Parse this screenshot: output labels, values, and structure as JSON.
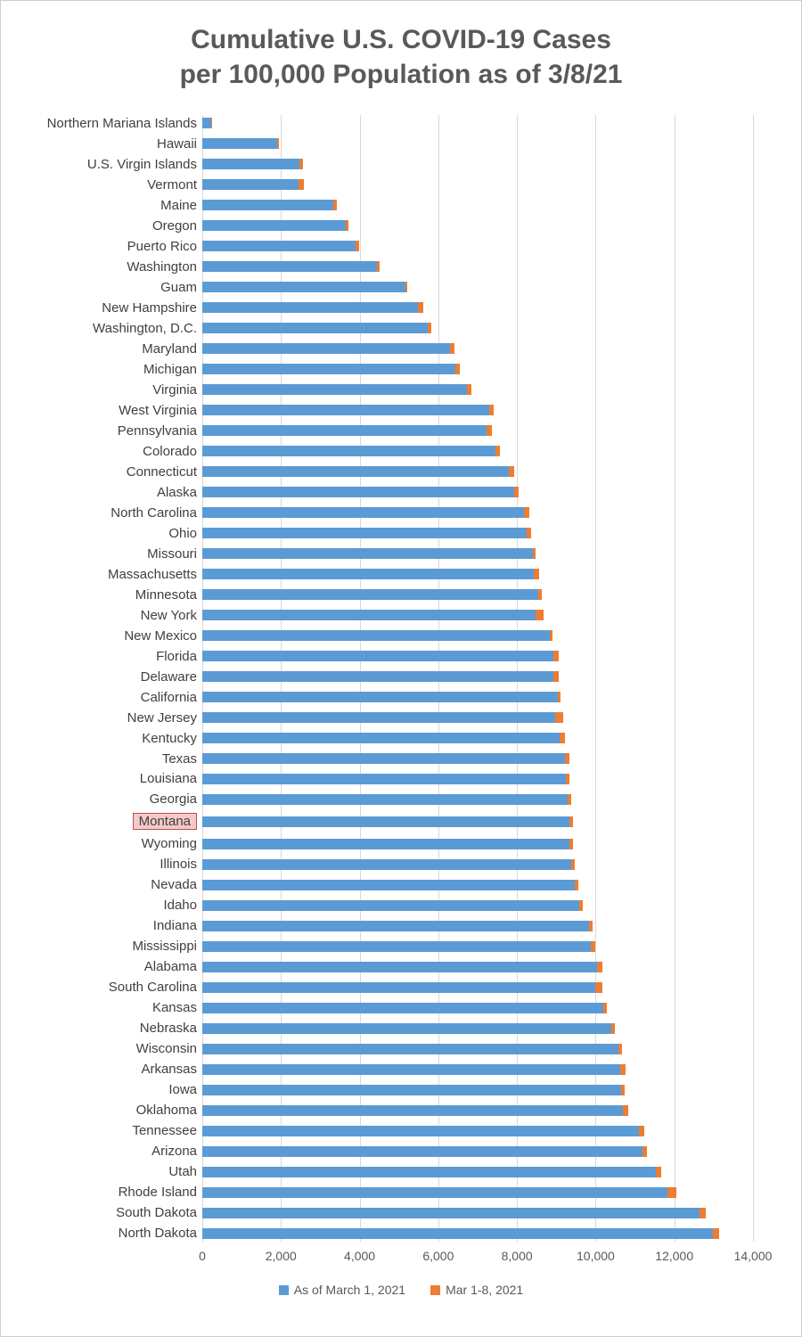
{
  "title": {
    "line1": "Cumulative U.S. COVID-19 Cases",
    "line2": "per 100,000 Population as of 3/8/21"
  },
  "legend": [
    {
      "label": "As of March 1, 2021",
      "color": "#5B9BD5"
    },
    {
      "label": "Mar 1-8, 2021",
      "color": "#ED7D31"
    }
  ],
  "colors": {
    "title_text": "#595959",
    "axis_text": "#595959",
    "gridline": "#d9d9d9",
    "highlight_fill": "#f5c8c9",
    "highlight_border": "#b85450",
    "frame_border": "#cfcfcf"
  },
  "chart_data": {
    "type": "bar",
    "orientation": "horizontal",
    "stacked": true,
    "title": "Cumulative U.S. COVID-19 Cases per 100,000 Population as of 3/8/21",
    "xlabel": "",
    "ylabel": "",
    "xlim": [
      0,
      14000
    ],
    "grid": true,
    "legend_position": "bottom",
    "highlighted_category": "Montana",
    "xticks": [
      {
        "label": "0",
        "value": 0
      },
      {
        "label": "2,000",
        "value": 2000
      },
      {
        "label": "4,000",
        "value": 4000
      },
      {
        "label": "6,000",
        "value": 6000
      },
      {
        "label": "8,000",
        "value": 8000
      },
      {
        "label": "10,000",
        "value": 10000
      },
      {
        "label": "12,000",
        "value": 12000
      },
      {
        "label": "14,000",
        "value": 14000
      }
    ],
    "categories": [
      "Northern Mariana Islands",
      "Hawaii",
      "U.S. Virgin Islands",
      "Vermont",
      "Maine",
      "Oregon",
      "Puerto Rico",
      "Washington",
      "Guam",
      "New Hampshire",
      "Washington, D.C.",
      "Maryland",
      "Michigan",
      "Virginia",
      "West Virginia",
      "Pennsylvania",
      "Colorado",
      "Connecticut",
      "Alaska",
      "North Carolina",
      "Ohio",
      "Missouri",
      "Massachusetts",
      "Minnesota",
      "New York",
      "New Mexico",
      "Florida",
      "Delaware",
      "California",
      "New Jersey",
      "Kentucky",
      "Texas",
      "Louisiana",
      "Georgia",
      "Montana",
      "Wyoming",
      "Illinois",
      "Nevada",
      "Idaho",
      "Indiana",
      "Mississippi",
      "Alabama",
      "South Carolina",
      "Kansas",
      "Nebraska",
      "Wisconsin",
      "Arkansas",
      "Iowa",
      "Oklahoma",
      "Tennessee",
      "Arizona",
      "Utah",
      "Rhode Island",
      "South Dakota",
      "North Dakota"
    ],
    "series": [
      {
        "name": "As of March 1, 2021",
        "color": "#5B9BD5",
        "values": [
          230,
          1900,
          2480,
          2440,
          3320,
          3650,
          3900,
          4430,
          5170,
          5480,
          5730,
          6290,
          6430,
          6720,
          7290,
          7230,
          7450,
          7790,
          7940,
          8180,
          8250,
          8400,
          8430,
          8540,
          8480,
          8840,
          8930,
          8920,
          9030,
          8980,
          9090,
          9230,
          9240,
          9280,
          9330,
          9340,
          9380,
          9480,
          9580,
          9830,
          9880,
          10040,
          9990,
          10190,
          10390,
          10580,
          10630,
          10640,
          10690,
          11090,
          11190,
          11540,
          11830,
          12640,
          12990
        ]
      },
      {
        "name": "Mar 1-8, 2021",
        "color": "#ED7D31",
        "values": [
          10,
          50,
          70,
          140,
          90,
          60,
          80,
          80,
          30,
          130,
          100,
          110,
          120,
          130,
          120,
          130,
          110,
          140,
          100,
          140,
          110,
          80,
          140,
          100,
          190,
          70,
          130,
          150,
          80,
          190,
          120,
          110,
          90,
          110,
          90,
          80,
          100,
          90,
          90,
          100,
          100,
          130,
          180,
          90,
          100,
          90,
          120,
          90,
          130,
          140,
          120,
          130,
          220,
          160,
          150
        ]
      }
    ]
  }
}
